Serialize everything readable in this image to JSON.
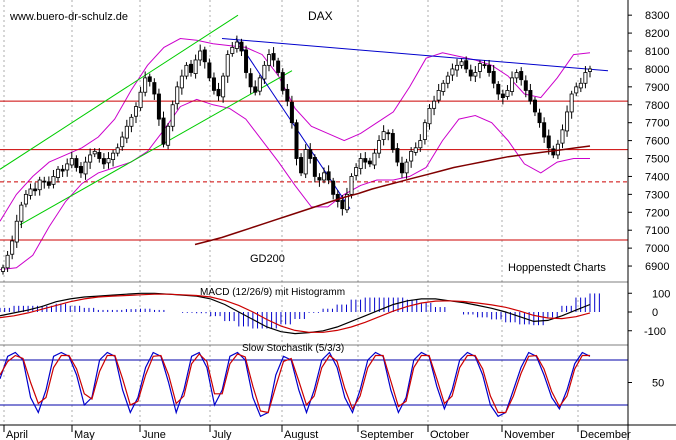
{
  "chart_data": [
    {
      "type": "candlestick",
      "title": "DAX",
      "watermark": "www.buero-dr-schulz.de",
      "source": "Hoppenstedt Charts",
      "y_ticks": [
        6900,
        7000,
        7100,
        7200,
        7300,
        7400,
        7500,
        7600,
        7700,
        7800,
        7900,
        8000,
        8100,
        8200,
        8300
      ],
      "ylim": [
        6850,
        8340
      ],
      "months": [
        "April",
        "May",
        "June",
        "July",
        "August",
        "September",
        "October",
        "November",
        "December"
      ],
      "gd200_label": "GD200",
      "horizontal_levels": [
        {
          "value": 7820,
          "color": "#cc0000",
          "style": "solid"
        },
        {
          "value": 7550,
          "color": "#cc0000",
          "style": "solid"
        },
        {
          "value": 7370,
          "color": "#cc0000",
          "style": "dashed"
        },
        {
          "value": 7045,
          "color": "#cc0000",
          "style": "solid"
        }
      ],
      "close": [
        6890,
        6960,
        7040,
        7150,
        7240,
        7300,
        7330,
        7320,
        7380,
        7370,
        7350,
        7400,
        7440,
        7430,
        7470,
        7500,
        7450,
        7420,
        7480,
        7520,
        7540,
        7500,
        7470,
        7500,
        7530,
        7560,
        7620,
        7680,
        7730,
        7790,
        7870,
        7950,
        7930,
        7860,
        7720,
        7580,
        7680,
        7800,
        7900,
        7960,
        8020,
        7980,
        8050,
        8100,
        8040,
        7950,
        7880,
        7850,
        7960,
        8080,
        8120,
        8150,
        8100,
        7980,
        7900,
        7870,
        7950,
        8020,
        8080,
        8050,
        7980,
        7880,
        7820,
        7700,
        7500,
        7420,
        7550,
        7500,
        7400,
        7380,
        7420,
        7380,
        7300,
        7260,
        7220,
        7300,
        7400,
        7450,
        7500,
        7480,
        7470,
        7530,
        7600,
        7650,
        7640,
        7550,
        7480,
        7420,
        7480,
        7540,
        7560,
        7600,
        7700,
        7780,
        7820,
        7880,
        7920,
        7960,
        8000,
        8020,
        8040,
        8000,
        7960,
        7980,
        8030,
        8020,
        7980,
        7920,
        7860,
        7840,
        7880,
        7950,
        7980,
        7940,
        7880,
        7820,
        7760,
        7700,
        7620,
        7560,
        7520,
        7580,
        7660,
        7760,
        7860,
        7900,
        7920,
        7980,
        8000
      ],
      "ma200": [
        7020,
        7040,
        7060,
        7085,
        7110,
        7135,
        7160,
        7185,
        7210,
        7235,
        7260,
        7285,
        7305,
        7330,
        7350,
        7370,
        7390,
        7410,
        7430,
        7450,
        7465,
        7480,
        7495,
        7510,
        7520,
        7530,
        7540,
        7550,
        7560,
        7570
      ],
      "upper_band": [
        7150,
        7300,
        7400,
        7480,
        7520,
        7560,
        7620,
        7720,
        7880,
        8020,
        8120,
        8170,
        8160,
        8140,
        8130,
        8120,
        8080,
        7960,
        7780,
        7680,
        7640,
        7600,
        7640,
        7700,
        7760,
        7900,
        8060,
        8090,
        8070,
        8050,
        8020,
        7960,
        7860,
        7840,
        7950,
        8080,
        8090
      ],
      "lower_band": [
        6880,
        6890,
        6960,
        7120,
        7260,
        7360,
        7420,
        7450,
        7480,
        7540,
        7660,
        7790,
        7830,
        7800,
        7780,
        7720,
        7600,
        7480,
        7350,
        7230,
        7230,
        7300,
        7350,
        7380,
        7380,
        7400,
        7450,
        7600,
        7720,
        7740,
        7700,
        7600,
        7470,
        7420,
        7480,
        7500,
        7500
      ],
      "series": [
        {
          "name": "GD200",
          "values": [
            7020,
            7040,
            7060,
            7085,
            7110,
            7135,
            7160,
            7185,
            7210,
            7235,
            7260,
            7285,
            7305,
            7330,
            7350,
            7370,
            7390,
            7410,
            7430,
            7450,
            7465,
            7480,
            7495,
            7510,
            7520,
            7530,
            7540,
            7550,
            7560,
            7570
          ]
        }
      ]
    },
    {
      "type": "line",
      "title": "MACD (12/26/9) mit Histogramm",
      "y_ticks": [
        100,
        0,
        -100
      ],
      "ylim": [
        -160,
        160
      ],
      "macd": [
        -20,
        -5,
        10,
        30,
        55,
        70,
        80,
        85,
        90,
        95,
        100,
        100,
        95,
        90,
        85,
        70,
        40,
        0,
        -40,
        -80,
        -105,
        -115,
        -110,
        -100,
        -80,
        -50,
        -20,
        10,
        40,
        60,
        70,
        70,
        60,
        50,
        35,
        20,
        0,
        -25,
        -50,
        -45,
        -20,
        10,
        40
      ],
      "signal": [
        -30,
        -20,
        -5,
        15,
        35,
        55,
        70,
        80,
        85,
        88,
        92,
        95,
        95,
        92,
        88,
        80,
        62,
        35,
        0,
        -40,
        -75,
        -98,
        -108,
        -108,
        -98,
        -80,
        -55,
        -25,
        5,
        30,
        48,
        58,
        60,
        56,
        48,
        38,
        25,
        5,
        -18,
        -32,
        -35,
        -25,
        -5
      ]
    },
    {
      "type": "line",
      "title": "Slow Stochastik (5/3/3)",
      "y_ticks": [
        50
      ],
      "ylim": [
        0,
        100
      ],
      "k": [
        55,
        85,
        90,
        80,
        30,
        10,
        40,
        85,
        90,
        85,
        60,
        20,
        30,
        80,
        90,
        85,
        40,
        10,
        30,
        70,
        90,
        85,
        50,
        10,
        40,
        85,
        90,
        70,
        20,
        40,
        85,
        90,
        80,
        30,
        5,
        10,
        60,
        85,
        80,
        40,
        10,
        40,
        80,
        90,
        70,
        30,
        10,
        40,
        80,
        90,
        85,
        40,
        10,
        30,
        80,
        90,
        85,
        45,
        15,
        40,
        80,
        90,
        85,
        60,
        20,
        5,
        10,
        40,
        70,
        90,
        85,
        60,
        30,
        15,
        40,
        75,
        90,
        85
      ],
      "d": [
        60,
        78,
        86,
        82,
        50,
        22,
        30,
        70,
        86,
        86,
        68,
        35,
        28,
        65,
        86,
        86,
        55,
        20,
        25,
        60,
        85,
        86,
        60,
        22,
        32,
        75,
        88,
        78,
        35,
        35,
        75,
        88,
        84,
        45,
        12,
        10,
        45,
        78,
        82,
        52,
        20,
        32,
        70,
        86,
        78,
        42,
        15,
        32,
        70,
        86,
        86,
        52,
        18,
        25,
        70,
        86,
        86,
        55,
        22,
        32,
        70,
        86,
        86,
        68,
        32,
        10,
        10,
        32,
        62,
        85,
        86,
        68,
        38,
        18,
        32,
        68,
        86,
        86
      ],
      "overbought": 80,
      "oversold": 20
    }
  ]
}
